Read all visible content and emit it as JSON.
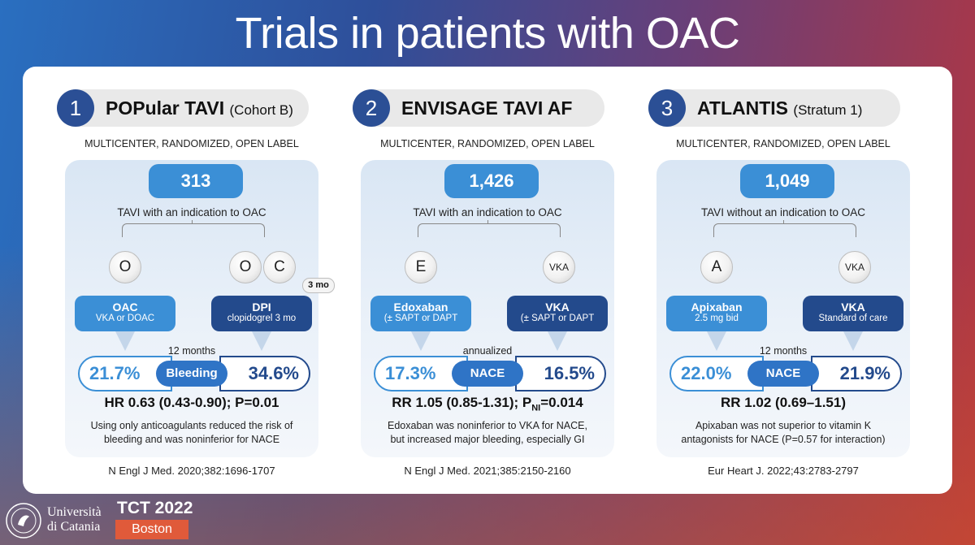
{
  "title": "Trials in patients with OAC",
  "trials": [
    {
      "number": "1",
      "name": "POPular TAVI",
      "subtitle": "(Cohort B)",
      "design": "MULTICENTER, RANDOMIZED, OPEN LABEL",
      "n": "313",
      "population": "TAVI with an indication to OAC",
      "left_arm": {
        "circle": "O",
        "name": "OAC",
        "detail": "VKA or DOAC"
      },
      "right_arm": {
        "circles": [
          "O",
          "C"
        ],
        "badge": "3 mo",
        "name": "DPI",
        "detail": "clopidogrel 3 mo"
      },
      "interval": "12 months",
      "endpoint": "Bleeding",
      "left_result": "21.7%",
      "right_result": "34.6%",
      "stat": "HR 0.63 (0.43-0.90); P=0.01",
      "conclusion": [
        "Using only anticoagulants reduced the risk of",
        "bleeding and was noninferior for NACE"
      ],
      "reference": "N Engl J Med. 2020;382:1696-1707"
    },
    {
      "number": "2",
      "name": "ENVISAGE TAVI AF",
      "subtitle": "",
      "design": "MULTICENTER, RANDOMIZED, OPEN LABEL",
      "n": "1,426",
      "population": "TAVI with an indication to OAC",
      "left_arm": {
        "circle": "E",
        "name": "Edoxaban",
        "detail": "(± SAPT or DAPT"
      },
      "right_arm": {
        "circle": "VKA",
        "name": "VKA",
        "detail": "(± SAPT or DAPT"
      },
      "interval": "annualized",
      "endpoint": "NACE",
      "left_result": "17.3%",
      "right_result": "16.5%",
      "stat_main": "RR 1.05 (0.85-1.31); P",
      "stat_sub": "NI",
      "stat_end": "=0.014",
      "conclusion": [
        "Edoxaban was noninferior to VKA for NACE,",
        "but increased major bleeding, especially GI"
      ],
      "reference": "N Engl J Med. 2021;385:2150-2160"
    },
    {
      "number": "3",
      "name": "ATLANTIS",
      "subtitle": "(Stratum 1)",
      "design": "MULTICENTER, RANDOMIZED, OPEN LABEL",
      "n": "1,049",
      "population": "TAVI without an indication to OAC",
      "left_arm": {
        "circle": "A",
        "name": "Apixaban",
        "detail": "2.5 mg bid"
      },
      "right_arm": {
        "circle": "VKA",
        "name": "VKA",
        "detail": "Standard of care"
      },
      "interval": "12 months",
      "endpoint": "NACE",
      "left_result": "22.0%",
      "right_result": "21.9%",
      "stat": "RR 1.02 (0.69–1.51)",
      "conclusion": [
        "Apixaban was not superior to vitamin K",
        "antagonists for NACE (P=0.57 for interaction)"
      ],
      "reference": "Eur Heart J. 2022;43:2783-2797"
    }
  ],
  "footer": {
    "university": [
      "Università",
      "di Catania"
    ],
    "event": "TCT 2022",
    "place": "Boston"
  }
}
